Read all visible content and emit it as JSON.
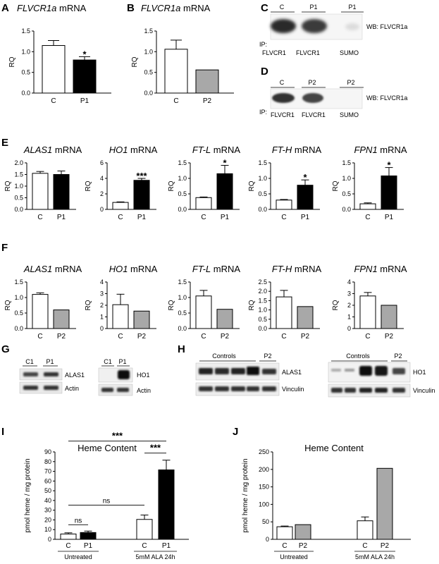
{
  "panels": {
    "A": {
      "letter": "A",
      "gene": "FLVCR1a",
      "suffix": " mRNA",
      "ylabel": "RQ",
      "ticks": [
        "0.0",
        "0.5",
        "1.0",
        "1.5"
      ],
      "chart": {
        "ymax": 1.5,
        "bars": [
          {
            "cat": "C",
            "value": 1.15,
            "err": 0.12,
            "fill": "#ffffff"
          },
          {
            "cat": "P1",
            "value": 0.8,
            "err": 0.08,
            "fill": "#000000",
            "sig": "*"
          }
        ]
      }
    },
    "B": {
      "letter": "B",
      "gene": "FLVCR1a",
      "suffix": " mRNA",
      "ylabel": "RQ",
      "ticks": [
        "0.0",
        "0.5",
        "1.0",
        "1.5"
      ],
      "chart": {
        "ymax": 1.5,
        "bars": [
          {
            "cat": "C",
            "value": 1.06,
            "err": 0.22,
            "fill": "#ffffff"
          },
          {
            "cat": "P2",
            "value": 0.56,
            "err": 0,
            "fill": "#a8a8a8"
          }
        ]
      }
    },
    "C": {
      "letter": "C",
      "lanes": [
        "C",
        "P1",
        "P1"
      ],
      "ip_label": "IP:",
      "ip_items": [
        "FLVCR1",
        "FLVCR1",
        "SUMO"
      ],
      "wb": "WB: FLVCR1a"
    },
    "D": {
      "letter": "D",
      "lanes": [
        "C",
        "P2",
        "P2"
      ],
      "ip_label": "IP:",
      "ip_items": [
        "FLVCR1",
        "FLVCR1",
        "SUMO"
      ],
      "wb": "WB: FLVCR1a"
    },
    "E": {
      "letter": "E",
      "charts": [
        {
          "gene": "ALAS1",
          "ylabel": "RQ",
          "ymax": 2.0,
          "ticks": [
            "0.0",
            "0.5",
            "1.0",
            "1.5",
            "2.0"
          ],
          "bars": [
            {
              "cat": "C",
              "value": 1.55,
              "err": 0.08,
              "fill": "#ffffff"
            },
            {
              "cat": "P1",
              "value": 1.5,
              "err": 0.15,
              "fill": "#000000"
            }
          ]
        },
        {
          "gene": "HO1",
          "ylabel": "RQ",
          "ymax": 6,
          "ticks": [
            "0",
            "2",
            "4",
            "6"
          ],
          "bars": [
            {
              "cat": "C",
              "value": 0.9,
              "err": 0.07,
              "fill": "#ffffff"
            },
            {
              "cat": "P1",
              "value": 3.75,
              "err": 0.25,
              "fill": "#000000",
              "sig": "***"
            }
          ]
        },
        {
          "gene": "FT-L",
          "ylabel": "RQ",
          "ymax": 1.5,
          "ticks": [
            "0.0",
            "0.5",
            "1.0",
            "1.5"
          ],
          "bars": [
            {
              "cat": "C",
              "value": 0.38,
              "err": 0.02,
              "fill": "#ffffff"
            },
            {
              "cat": "P1",
              "value": 1.15,
              "err": 0.27,
              "fill": "#000000",
              "sig": "*"
            }
          ]
        },
        {
          "gene": "FT-H",
          "ylabel": "RQ",
          "ymax": 1.5,
          "ticks": [
            "0.0",
            "0.5",
            "1.0",
            "1.5"
          ],
          "bars": [
            {
              "cat": "C",
              "value": 0.3,
              "err": 0.02,
              "fill": "#ffffff"
            },
            {
              "cat": "P1",
              "value": 0.78,
              "err": 0.17,
              "fill": "#000000",
              "sig": "*"
            }
          ]
        },
        {
          "gene": "FPN1",
          "ylabel": "RQ",
          "ymax": 1.5,
          "ticks": [
            "0.0",
            "0.5",
            "1.0",
            "1.5"
          ],
          "bars": [
            {
              "cat": "C",
              "value": 0.18,
              "err": 0.03,
              "fill": "#ffffff"
            },
            {
              "cat": "P1",
              "value": 1.08,
              "err": 0.27,
              "fill": "#000000",
              "sig": "*"
            }
          ]
        }
      ]
    },
    "F": {
      "letter": "F",
      "charts": [
        {
          "gene": "ALAS1",
          "ylabel": "RQ",
          "ymax": 1.5,
          "ticks": [
            "0.0",
            "0.5",
            "1.0",
            "1.5"
          ],
          "bars": [
            {
              "cat": "C",
              "value": 1.1,
              "err": 0.05,
              "fill": "#ffffff"
            },
            {
              "cat": "P2",
              "value": 0.6,
              "err": 0,
              "fill": "#a8a8a8"
            }
          ]
        },
        {
          "gene": "HO1",
          "ylabel": "RQ",
          "ymax": 4,
          "ticks": [
            "0",
            "1",
            "2",
            "3",
            "4"
          ],
          "bars": [
            {
              "cat": "C",
              "value": 2.05,
              "err": 0.9,
              "fill": "#ffffff"
            },
            {
              "cat": "P2",
              "value": 1.5,
              "err": 0,
              "fill": "#a8a8a8"
            }
          ]
        },
        {
          "gene": "FT-L",
          "ylabel": "RQ",
          "ymax": 1.5,
          "ticks": [
            "0.0",
            "0.5",
            "1.0",
            "1.5"
          ],
          "bars": [
            {
              "cat": "C",
              "value": 1.05,
              "err": 0.18,
              "fill": "#ffffff"
            },
            {
              "cat": "P2",
              "value": 0.62,
              "err": 0,
              "fill": "#a8a8a8"
            }
          ]
        },
        {
          "gene": "FT-H",
          "ylabel": "RQ",
          "ymax": 2.5,
          "ticks": [
            "0.0",
            "0.5",
            "1.0",
            "1.5",
            "2.0",
            "2.5"
          ],
          "bars": [
            {
              "cat": "C",
              "value": 1.7,
              "err": 0.35,
              "fill": "#ffffff"
            },
            {
              "cat": "P2",
              "value": 1.18,
              "err": 0,
              "fill": "#a8a8a8"
            }
          ]
        },
        {
          "gene": "FPN1",
          "ylabel": "RQ",
          "ymax": 4,
          "ticks": [
            "0",
            "1",
            "2",
            "3",
            "4"
          ],
          "bars": [
            {
              "cat": "C",
              "value": 2.8,
              "err": 0.3,
              "fill": "#ffffff"
            },
            {
              "cat": "P2",
              "value": 2.0,
              "err": 0,
              "fill": "#a8a8a8"
            }
          ]
        }
      ]
    },
    "G": {
      "letter": "G",
      "left": {
        "lanes": [
          "C1",
          "P1"
        ],
        "bands": [
          "ALAS1",
          "Actin"
        ]
      },
      "right": {
        "lanes": [
          "C1",
          "P1"
        ],
        "bands": [
          "HO1",
          "Actin"
        ]
      }
    },
    "H": {
      "letter": "H",
      "left": {
        "group": "Controls",
        "p2": "P2",
        "bands": [
          "ALAS1",
          "Vinculin"
        ]
      },
      "right": {
        "group": "Controls",
        "p2": "P2",
        "bands": [
          "HO1",
          "Vinculin"
        ]
      }
    },
    "I": {
      "letter": "I",
      "title": "Heme Content",
      "ylabel": "pmol heme / mg protein",
      "ymax": 90,
      "ticks": [
        "0",
        "10",
        "20",
        "30",
        "40",
        "50",
        "60",
        "70",
        "80",
        "90"
      ],
      "groups": [
        "Untreated",
        "5mM ALA 24h"
      ],
      "bars": [
        {
          "cat": "C",
          "value": 5.5,
          "err": 1.2,
          "fill": "#ffffff"
        },
        {
          "cat": "P1",
          "value": 7,
          "err": 1.5,
          "fill": "#000000"
        },
        {
          "cat": "C",
          "value": 20.5,
          "err": 4.5,
          "fill": "#ffffff"
        },
        {
          "cat": "P1",
          "value": 71.5,
          "err": 10,
          "fill": "#000000"
        }
      ],
      "sig": [
        "ns",
        "ns",
        "***",
        "***"
      ]
    },
    "J": {
      "letter": "J",
      "title": "Heme Content",
      "ylabel": "pmol heme / mg protein",
      "ymax": 250,
      "ticks": [
        "0",
        "50",
        "100",
        "150",
        "200",
        "250"
      ],
      "groups": [
        "Untreated",
        "5mM ALA 24h"
      ],
      "bars": [
        {
          "cat": "C",
          "value": 36,
          "err": 2,
          "fill": "#ffffff"
        },
        {
          "cat": "P2",
          "value": 42,
          "err": 0,
          "fill": "#a8a8a8"
        },
        {
          "cat": "C",
          "value": 53,
          "err": 11,
          "fill": "#ffffff"
        },
        {
          "cat": "P2",
          "value": 203,
          "err": 0,
          "fill": "#a8a8a8"
        }
      ]
    }
  },
  "chart_data": [
    {
      "type": "bar",
      "categories": [
        "C",
        "P1"
      ],
      "values": [
        1.15,
        0.8
      ],
      "title": "FLVCR1a mRNA",
      "ylabel": "RQ",
      "ylim": [
        0,
        1.5
      ]
    },
    {
      "type": "bar",
      "categories": [
        "C",
        "P2"
      ],
      "values": [
        1.06,
        0.56
      ],
      "title": "FLVCR1a mRNA",
      "ylabel": "RQ",
      "ylim": [
        0,
        1.5
      ]
    },
    {
      "type": "bar",
      "categories": [
        "C",
        "P1"
      ],
      "values": [
        1.55,
        1.5
      ],
      "title": "ALAS1 mRNA",
      "ylabel": "RQ",
      "ylim": [
        0,
        2.0
      ]
    },
    {
      "type": "bar",
      "categories": [
        "C",
        "P1"
      ],
      "values": [
        0.9,
        3.75
      ],
      "title": "HO1 mRNA",
      "ylabel": "RQ",
      "ylim": [
        0,
        6
      ]
    },
    {
      "type": "bar",
      "categories": [
        "C",
        "P1"
      ],
      "values": [
        0.38,
        1.15
      ],
      "title": "FT-L mRNA",
      "ylabel": "RQ",
      "ylim": [
        0,
        1.5
      ]
    },
    {
      "type": "bar",
      "categories": [
        "C",
        "P1"
      ],
      "values": [
        0.3,
        0.78
      ],
      "title": "FT-H mRNA",
      "ylabel": "RQ",
      "ylim": [
        0,
        1.5
      ]
    },
    {
      "type": "bar",
      "categories": [
        "C",
        "P1"
      ],
      "values": [
        0.18,
        1.08
      ],
      "title": "FPN1 mRNA",
      "ylabel": "RQ",
      "ylim": [
        0,
        1.5
      ]
    },
    {
      "type": "bar",
      "categories": [
        "C",
        "P2"
      ],
      "values": [
        1.1,
        0.6
      ],
      "title": "ALAS1 mRNA",
      "ylabel": "RQ",
      "ylim": [
        0,
        1.5
      ]
    },
    {
      "type": "bar",
      "categories": [
        "C",
        "P2"
      ],
      "values": [
        2.05,
        1.5
      ],
      "title": "HO1 mRNA",
      "ylabel": "RQ",
      "ylim": [
        0,
        4
      ]
    },
    {
      "type": "bar",
      "categories": [
        "C",
        "P2"
      ],
      "values": [
        1.05,
        0.62
      ],
      "title": "FT-L mRNA",
      "ylabel": "RQ",
      "ylim": [
        0,
        1.5
      ]
    },
    {
      "type": "bar",
      "categories": [
        "C",
        "P2"
      ],
      "values": [
        1.7,
        1.18
      ],
      "title": "FT-H mRNA",
      "ylabel": "RQ",
      "ylim": [
        0,
        2.5
      ]
    },
    {
      "type": "bar",
      "categories": [
        "C",
        "P2"
      ],
      "values": [
        2.8,
        2.0
      ],
      "title": "FPN1 mRNA",
      "ylabel": "RQ",
      "ylim": [
        0,
        4
      ]
    },
    {
      "type": "bar",
      "categories": [
        "Untreated C",
        "Untreated P1",
        "5mM ALA 24h C",
        "5mM ALA 24h P1"
      ],
      "values": [
        5.5,
        7,
        20.5,
        71.5
      ],
      "title": "Heme Content",
      "ylabel": "pmol heme / mg protein",
      "ylim": [
        0,
        90
      ]
    },
    {
      "type": "bar",
      "categories": [
        "Untreated C",
        "Untreated P2",
        "5mM ALA 24h C",
        "5mM ALA 24h P2"
      ],
      "values": [
        36,
        42,
        53,
        203
      ],
      "title": "Heme Content",
      "ylabel": "pmol heme / mg protein",
      "ylim": [
        0,
        250
      ]
    }
  ]
}
